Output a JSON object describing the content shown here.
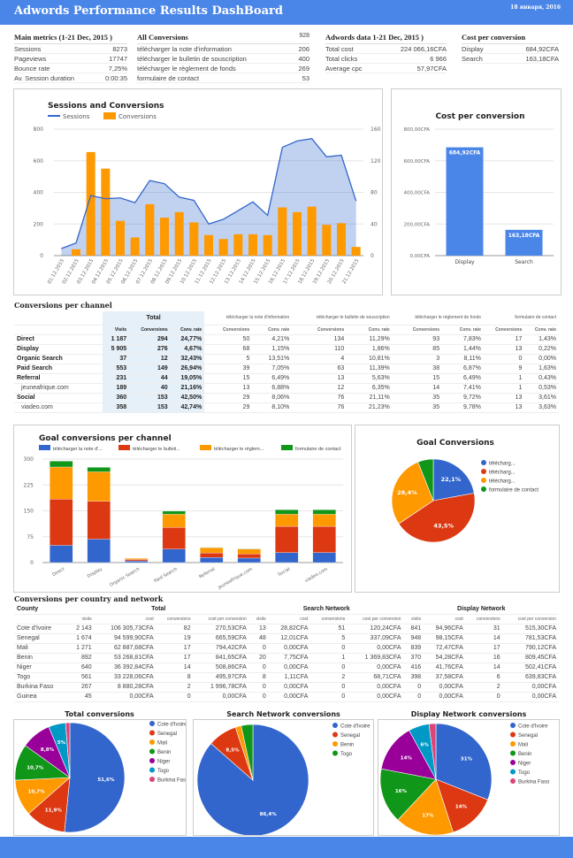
{
  "header": {
    "title": "Adwords Performance Results DashBoard",
    "date": "18 января, 2016"
  },
  "main_metrics": {
    "title": "Main metrics (1-21 Dec, 2015 )",
    "rows": [
      [
        "Sessions",
        "8273"
      ],
      [
        "Pageviews",
        "17747"
      ],
      [
        "Bounce rate",
        "7,25%"
      ],
      [
        "Av. Session duration",
        "0:00:35"
      ]
    ]
  },
  "all_conversions": {
    "title": "All Conversions",
    "total": "928",
    "rows": [
      [
        "télécharger la note d'information",
        "206"
      ],
      [
        "télécharger le bulletin de souscription",
        "400"
      ],
      [
        "télécharger le règlement de fonds",
        "269"
      ],
      [
        "formulaire de contact",
        "53"
      ]
    ]
  },
  "adwords_data": {
    "title": "Adwords data 1-21 Dec, 2015 )",
    "rows": [
      [
        "Total cost",
        "224 066,16CFA"
      ],
      [
        "Total clicks",
        "6 966"
      ],
      [
        "Average cpc",
        "57,97CFA"
      ]
    ]
  },
  "cost_per_conversion_table": {
    "title": "Cost per conversion",
    "rows": [
      [
        "Display",
        "684,92CFA"
      ],
      [
        "Search",
        "163,18CFA"
      ]
    ]
  },
  "colors": {
    "header": "#4a86e8",
    "blue": "#3366cc",
    "red": "#dc3912",
    "orange": "#ff9900",
    "green": "#109618",
    "purple": "#990099",
    "teal": "#0099c6",
    "pink": "#dd4477"
  },
  "chart_data": [
    {
      "type": "bar+area",
      "title": "Sessions and Conversions",
      "legend": [
        "Sessions",
        "Conversions"
      ],
      "legend_placement": "top-left",
      "categories": [
        "01.12.2015",
        "02.12.2015",
        "03.12.2015",
        "04.12.2015",
        "05.12.2015",
        "06.12.2015",
        "07.12.2015",
        "08.12.2015",
        "09.12.2015",
        "10.12.2015",
        "11.12.2015",
        "12.12.2015",
        "13.12.2015",
        "14.12.2015",
        "15.12.2015",
        "16.12.2015",
        "17.12.2015",
        "18.12.2015",
        "19.12.2015",
        "20.12.2015",
        "21.12.2015"
      ],
      "series": [
        {
          "name": "Sessions",
          "axis": "left",
          "values": [
            45,
            80,
            380,
            360,
            365,
            335,
            475,
            455,
            370,
            350,
            200,
            230,
            285,
            340,
            255,
            685,
            725,
            740,
            625,
            635,
            345
          ]
        },
        {
          "name": "Conversions",
          "axis": "right",
          "values": [
            0,
            8,
            131,
            110,
            44,
            23,
            65,
            48,
            55,
            42,
            26,
            21,
            27,
            27,
            26,
            61,
            55,
            62,
            39,
            41,
            11
          ]
        }
      ],
      "ylim_left": [
        0,
        800
      ],
      "ylim_right": [
        0,
        160
      ],
      "yticks_left": [
        "0",
        "200",
        "400",
        "600",
        "800"
      ],
      "yticks_right": [
        "0",
        "40",
        "80",
        "120",
        "160"
      ],
      "grid": true
    },
    {
      "type": "bar",
      "title": "Cost per conversion",
      "categories": [
        "Display",
        "Search"
      ],
      "values": [
        684.92,
        163.18
      ],
      "data_labels": [
        "684,92CFA",
        "163,18CFA"
      ],
      "ylim": [
        0,
        800
      ],
      "yticks": [
        "0,00CFA",
        "200,00CFA",
        "400,00CFA",
        "600,00CFA",
        "800,00CFA"
      ],
      "grid": true
    },
    {
      "type": "stacked-bar",
      "title": "Goal conversions per channel",
      "legend_placement": "top",
      "categories": [
        "Direct",
        "Display",
        "Organic Search",
        "Paid Search",
        "Referral",
        "jeuneafrique.com",
        "Social",
        "viadeo.com"
      ],
      "series": [
        {
          "name": "télécharger la note d'...",
          "values": [
            50,
            68,
            5,
            39,
            15,
            13,
            29,
            29
          ]
        },
        {
          "name": "télécharger le bulleti...",
          "values": [
            134,
            110,
            4,
            63,
            13,
            12,
            76,
            76
          ]
        },
        {
          "name": "télécharger le réglem...",
          "values": [
            93,
            85,
            3,
            38,
            15,
            14,
            35,
            35
          ]
        },
        {
          "name": "formulaire de contact",
          "values": [
            17,
            13,
            0,
            9,
            1,
            1,
            13,
            13
          ]
        }
      ],
      "ylim": [
        0,
        300
      ],
      "yticks": [
        "0",
        "75",
        "150",
        "225",
        "300"
      ],
      "grid": true
    },
    {
      "type": "pie",
      "title": "Goal Conversions",
      "legend_placement": "right",
      "labels": [
        "télécharg...",
        "télécharg...",
        "télécharg...",
        "formulaire de contact"
      ],
      "values": [
        22.1,
        43.5,
        28.4,
        6.0
      ],
      "data_labels": [
        "22,1%",
        "43,5%",
        "28,4%",
        ""
      ]
    },
    {
      "type": "pie",
      "title": "Total conversions",
      "legend_placement": "right",
      "labels": [
        "Cote d'Ivoire",
        "Senegal",
        "Mali",
        "Benin",
        "Niger",
        "Togo",
        "Burkina Faso"
      ],
      "values": [
        82,
        19,
        17,
        17,
        14,
        8,
        2
      ],
      "data_labels": [
        "51,6%",
        "11,9%",
        "10,7%",
        "10,7%",
        "8,8%",
        "5%",
        ""
      ]
    },
    {
      "type": "pie",
      "title": "Search Network conversions",
      "legend_placement": "right",
      "labels": [
        "Cote d'Ivoire",
        "Senegal",
        "Benin",
        "Togo"
      ],
      "values": [
        51,
        5,
        1,
        2
      ],
      "data_labels": [
        "86,4%",
        "8,5%",
        "",
        ""
      ]
    },
    {
      "type": "pie",
      "title": "Display Network conversions",
      "legend_placement": "right",
      "labels": [
        "Cote d'Ivoire",
        "Senegal",
        "Mali",
        "Benin",
        "Niger",
        "Togo",
        "Burkina Faso"
      ],
      "values": [
        31,
        14,
        17,
        16,
        14,
        6,
        2
      ],
      "data_labels": [
        "31%",
        "14%",
        "17%",
        "16%",
        "14%",
        "6%",
        ""
      ]
    }
  ],
  "channels": {
    "title": "Conversions per channel",
    "total_label": "Total",
    "groups": [
      "télécharger la note d'information",
      "télécharger le bulletin de souscription",
      "télécharger le règlement de fonds",
      "formulaire de contact"
    ],
    "subheaders": [
      "Visits",
      "Conversions",
      "Conv. rate",
      "Conversions",
      "Conv. rate",
      "Conversions",
      "Conv. rate",
      "Conversions",
      "Conv. rate",
      "Conversions",
      "Conv. rate"
    ],
    "rows": [
      {
        "name": "Direct",
        "bold": true,
        "cells": [
          "1 187",
          "294",
          "24,77%",
          "50",
          "4,21%",
          "134",
          "11,29%",
          "93",
          "7,83%",
          "17",
          "1,43%"
        ]
      },
      {
        "name": "Display",
        "bold": true,
        "cells": [
          "5 905",
          "276",
          "4,67%",
          "68",
          "1,15%",
          "110",
          "1,86%",
          "85",
          "1,44%",
          "13",
          "0,22%"
        ]
      },
      {
        "name": "Organic Search",
        "bold": true,
        "cells": [
          "37",
          "12",
          "32,43%",
          "5",
          "13,51%",
          "4",
          "10,81%",
          "3",
          "8,11%",
          "0",
          "0,00%"
        ]
      },
      {
        "name": "Paid Search",
        "bold": true,
        "cells": [
          "553",
          "149",
          "26,94%",
          "39",
          "7,05%",
          "63",
          "11,39%",
          "38",
          "6,87%",
          "9",
          "1,63%"
        ]
      },
      {
        "name": "Referral",
        "bold": true,
        "cells": [
          "231",
          "44",
          "19,05%",
          "15",
          "6,49%",
          "13",
          "5,63%",
          "15",
          "6,49%",
          "1",
          "0,43%"
        ]
      },
      {
        "name": "jeuneafrique.com",
        "bold": false,
        "cells": [
          "189",
          "40",
          "21,16%",
          "13",
          "6,88%",
          "12",
          "6,35%",
          "14",
          "7,41%",
          "1",
          "0,53%"
        ]
      },
      {
        "name": "Social",
        "bold": true,
        "cells": [
          "360",
          "153",
          "42,50%",
          "29",
          "8,06%",
          "76",
          "21,11%",
          "35",
          "9,72%",
          "13",
          "3,61%"
        ]
      },
      {
        "name": "viadeo.com",
        "bold": false,
        "cells": [
          "358",
          "153",
          "42,74%",
          "29",
          "8,10%",
          "76",
          "21,23%",
          "35",
          "9,78%",
          "13",
          "3,63%"
        ]
      }
    ]
  },
  "countries": {
    "title": "Conversions per country and network",
    "country_label": "County",
    "groups": [
      "Total",
      "Search Network",
      "Display Network"
    ],
    "subheaders": [
      "visits",
      "cost",
      "conversions",
      "cost per conversion",
      "visits",
      "cost",
      "conversions",
      "cost per conversion",
      "visits",
      "cost",
      "conversions",
      "cost per conversion"
    ],
    "rows": [
      [
        "Cote d'Ivoire",
        "2 143",
        "106 305,73CFA",
        "82",
        "270,53CFA",
        "13",
        "28,82CFA",
        "51",
        "120,24CFA",
        "841",
        "94,96CFA",
        "31",
        "515,30CFA"
      ],
      [
        "Senegal",
        "1 674",
        "94 599,90CFA",
        "19",
        "665,59CFA",
        "48",
        "12,01CFA",
        "5",
        "337,09CFA",
        "948",
        "98,15CFA",
        "14",
        "781,53CFA"
      ],
      [
        "Mali",
        "1 271",
        "62 887,68CFA",
        "17",
        "794,42CFA",
        "0",
        "0,00CFA",
        "0",
        "0,00CFA",
        "839",
        "72,47CFA",
        "17",
        "790,12CFA"
      ],
      [
        "Benin",
        "892",
        "53 268,81CFA",
        "17",
        "841,65CFA",
        "20",
        "7,75CFA",
        "1",
        "1 369,83CFA",
        "370",
        "54,28CFA",
        "16",
        "809,45CFA"
      ],
      [
        "Niger",
        "640",
        "36 392,84CFA",
        "14",
        "508,86CFA",
        "0",
        "0,00CFA",
        "0",
        "0,00CFA",
        "416",
        "41,76CFA",
        "14",
        "502,41CFA"
      ],
      [
        "Togo",
        "561",
        "33 228,06CFA",
        "8",
        "495,97CFA",
        "8",
        "1,11CFA",
        "2",
        "68,71CFA",
        "398",
        "37,58CFA",
        "6",
        "639,83CFA"
      ],
      [
        "Burkina Faso",
        "267",
        "8 880,28CFA",
        "2",
        "1 996,78CFA",
        "0",
        "0,00CFA",
        "0",
        "0,00CFA",
        "0",
        "0,00CFA",
        "2",
        "0,00CFA"
      ],
      [
        "Guinea",
        "45",
        "0,00CFA",
        "0",
        "0,00CFA",
        "0",
        "0,00CFA",
        "0",
        "0,00CFA",
        "0",
        "0,00CFA",
        "0",
        "0,00CFA"
      ]
    ]
  }
}
